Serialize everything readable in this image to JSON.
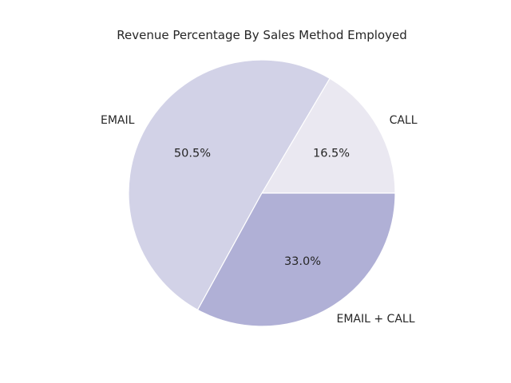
{
  "chart_data": {
    "type": "pie",
    "title": "Revenue Percentage By Sales Method Employed",
    "slices": [
      {
        "label": "CALL",
        "value": 16.5,
        "display": "16.5%",
        "color": "#eae8f1"
      },
      {
        "label": "EMAIL",
        "value": 50.5,
        "display": "50.5%",
        "color": "#d2d2e7"
      },
      {
        "label": "EMAIL + CALL",
        "value": 33.0,
        "display": "33.0%",
        "color": "#b0b0d6"
      }
    ],
    "start_angle_deg": 0,
    "direction": "counterclockwise",
    "edge_color": "#ffffff"
  }
}
